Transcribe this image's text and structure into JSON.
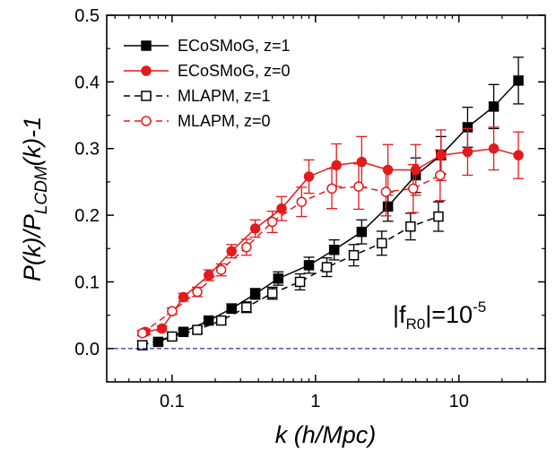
{
  "chart_data": {
    "type": "line",
    "xscale": "log",
    "xlim": [
      0.035,
      40
    ],
    "ylim": [
      -0.05,
      0.5
    ],
    "xticks": [
      0.1,
      1,
      10
    ],
    "xtick_labels": [
      "0.1",
      "1",
      "10"
    ],
    "yticks": [
      0.0,
      0.1,
      0.2,
      0.3,
      0.4,
      0.5
    ],
    "ytick_labels": [
      "0.0",
      "0.1",
      "0.2",
      "0.3",
      "0.4",
      "0.5"
    ],
    "xlabel": "k (h/Mpc)",
    "ylabel": {
      "main1": "P(k)/P",
      "sub": "LCDM",
      "main2": "(k)-1"
    },
    "annotation": {
      "base1": "|f",
      "sub": "R0",
      "base2": "|=10",
      "sup": "-5"
    },
    "reference_line": {
      "y": 0.0,
      "color": "#1a1aa0",
      "style": "dashed"
    },
    "legend_position": "top-left",
    "series": [
      {
        "name": "ECoSMoG, z=1",
        "color": "#000000",
        "line": "solid",
        "marker": "square-filled",
        "x": [
          0.08,
          0.12,
          0.18,
          0.26,
          0.38,
          0.55,
          0.9,
          1.35,
          2.1,
          3.2,
          5.0,
          7.5,
          11.5,
          17.5,
          26
        ],
        "y": [
          0.01,
          0.025,
          0.042,
          0.06,
          0.082,
          0.105,
          0.125,
          0.148,
          0.175,
          0.213,
          0.26,
          0.29,
          0.332,
          0.363,
          0.402
        ],
        "err": [
          0.004,
          0.004,
          0.005,
          0.007,
          0.008,
          0.01,
          0.012,
          0.015,
          0.018,
          0.022,
          0.026,
          0.028,
          0.03,
          0.033,
          0.035
        ]
      },
      {
        "name": "ECoSMoG, z=0",
        "color": "#e31a1c",
        "line": "solid",
        "marker": "circle-filled",
        "x": [
          0.065,
          0.085,
          0.12,
          0.18,
          0.26,
          0.38,
          0.58,
          0.9,
          1.4,
          2.1,
          3.2,
          5.0,
          7.5,
          11.5,
          17.5,
          26
        ],
        "y": [
          0.025,
          0.03,
          0.077,
          0.11,
          0.146,
          0.18,
          0.21,
          0.258,
          0.275,
          0.28,
          0.268,
          0.268,
          0.29,
          0.295,
          0.3,
          0.29
        ],
        "err": [
          0.004,
          0.004,
          0.006,
          0.008,
          0.01,
          0.013,
          0.018,
          0.025,
          0.032,
          0.038,
          0.038,
          0.038,
          0.038,
          0.035,
          0.032,
          0.035
        ]
      },
      {
        "name": "MLAPM, z=1",
        "color": "#000000",
        "line": "dashed",
        "marker": "square-open",
        "x": [
          0.062,
          0.1,
          0.15,
          0.22,
          0.33,
          0.5,
          0.78,
          1.2,
          1.85,
          2.9,
          4.6,
          7.2
        ],
        "y": [
          0.005,
          0.018,
          0.028,
          0.042,
          0.062,
          0.083,
          0.1,
          0.122,
          0.14,
          0.158,
          0.183,
          0.198
        ],
        "err": [
          0.006,
          0.004,
          0.005,
          0.006,
          0.008,
          0.009,
          0.012,
          0.014,
          0.016,
          0.018,
          0.02,
          0.022
        ]
      },
      {
        "name": "MLAPM, z=0",
        "color": "#e31a1c",
        "line": "dashed",
        "marker": "circle-open",
        "x": [
          0.062,
          0.1,
          0.15,
          0.22,
          0.33,
          0.5,
          0.8,
          1.3,
          2.0,
          3.1,
          4.8,
          7.4
        ],
        "y": [
          0.023,
          0.056,
          0.085,
          0.118,
          0.152,
          0.19,
          0.22,
          0.24,
          0.243,
          0.235,
          0.24,
          0.26
        ],
        "err": [
          0.004,
          0.005,
          0.007,
          0.009,
          0.012,
          0.016,
          0.022,
          0.03,
          0.034,
          0.036,
          0.036,
          0.038
        ]
      }
    ]
  }
}
